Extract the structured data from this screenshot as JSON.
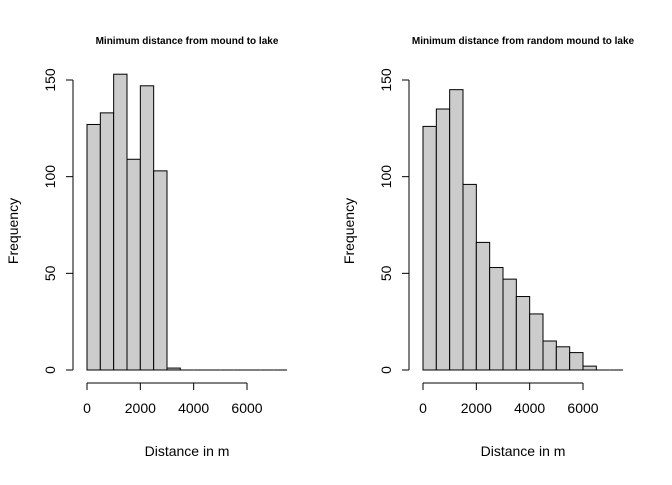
{
  "colors": {
    "bar_fill": "#cccccc",
    "bar_stroke": "#000000",
    "axis": "#000000",
    "background": "#ffffff"
  },
  "chart_data": [
    {
      "type": "bar",
      "title": "Minimum distance from mound to lake",
      "xlabel": "Distance in m",
      "ylabel": "Frequency",
      "bin_width": 500,
      "bin_start": 0,
      "values": [
        127,
        133,
        153,
        109,
        147,
        103,
        1,
        0,
        0,
        0,
        0,
        0,
        0,
        0,
        0
      ],
      "xlim": [
        0,
        7500
      ],
      "ylim": [
        0,
        150
      ],
      "xticks": [
        0,
        2000,
        4000,
        6000
      ],
      "xtick_labels": [
        "0",
        "2000",
        "4000",
        "6000"
      ],
      "yticks": [
        0,
        50,
        100,
        150
      ],
      "ytick_labels": [
        "0",
        "50",
        "100",
        "150"
      ]
    },
    {
      "type": "bar",
      "title": "Minimum distance from random mound to lake",
      "xlabel": "Distance in m",
      "ylabel": "Frequency",
      "bin_width": 500,
      "bin_start": 0,
      "values": [
        126,
        135,
        145,
        96,
        66,
        53,
        47,
        38,
        29,
        15,
        12,
        9,
        2,
        0,
        0
      ],
      "xlim": [
        0,
        7500
      ],
      "ylim": [
        0,
        150
      ],
      "xticks": [
        0,
        2000,
        4000,
        6000
      ],
      "xtick_labels": [
        "0",
        "2000",
        "4000",
        "6000"
      ],
      "yticks": [
        0,
        50,
        100,
        150
      ],
      "ytick_labels": [
        "0",
        "50",
        "100",
        "150"
      ]
    }
  ]
}
